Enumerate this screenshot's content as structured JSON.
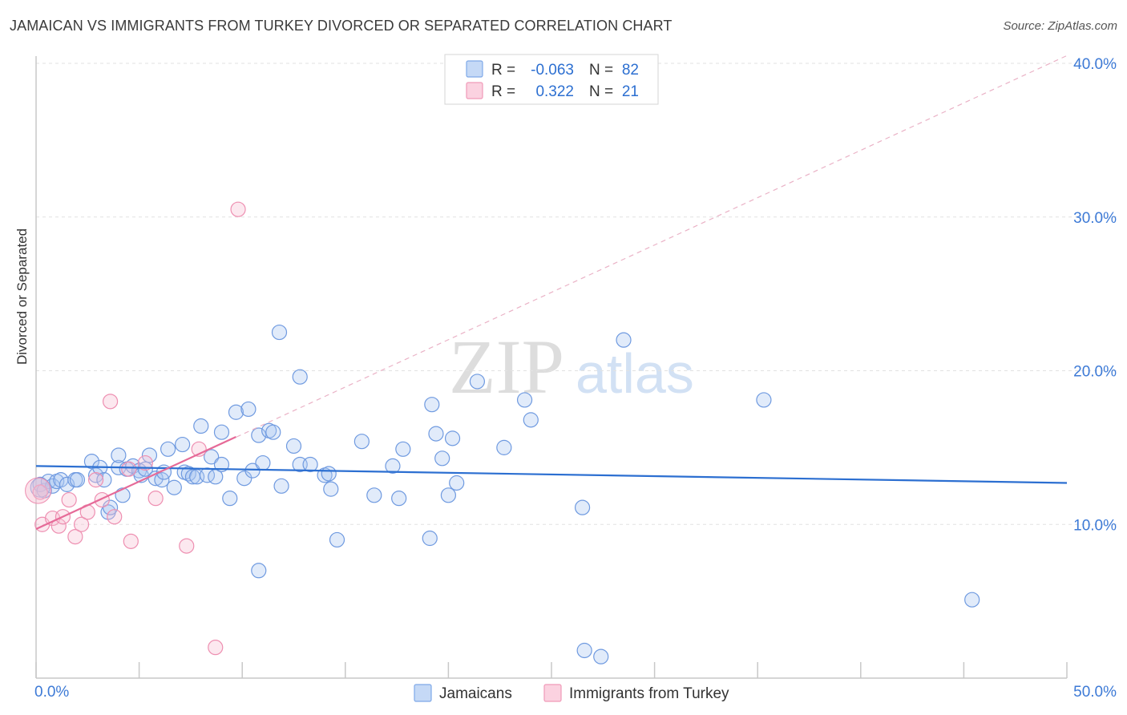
{
  "header": {
    "title": "JAMAICAN VS IMMIGRANTS FROM TURKEY DIVORCED OR SEPARATED CORRELATION CHART",
    "source": "Source: ZipAtlas.com"
  },
  "watermark": {
    "zip": "ZIP",
    "atlas": "atlas"
  },
  "legend_top": {
    "rows": [
      {
        "r_label": "R =",
        "r_value": "-0.063",
        "n_label": "N =",
        "n_value": "82",
        "color": "#7fa9e8"
      },
      {
        "r_label": "R =",
        "r_value": "0.322",
        "n_label": "N =",
        "n_value": "21",
        "color": "#f09ab8"
      }
    ]
  },
  "legend_bottom": {
    "items": [
      {
        "label": "Jamaicans",
        "color": "#7fa9e8"
      },
      {
        "label": "Immigrants from Turkey",
        "color": "#f09ab8"
      }
    ]
  },
  "chart_data": {
    "type": "scatter",
    "title": "JAMAICAN VS IMMIGRANTS FROM TURKEY DIVORCED OR SEPARATED CORRELATION CHART",
    "xlabel": "",
    "ylabel": "Divorced or Separated",
    "xlim": [
      0,
      50
    ],
    "ylim": [
      0,
      40
    ],
    "x_tick_labels": [
      "0.0%",
      "50.0%"
    ],
    "y_tick_values": [
      10,
      20,
      30,
      40
    ],
    "y_tick_labels": [
      "10.0%",
      "20.0%",
      "30.0%",
      "40.0%"
    ],
    "grid": true,
    "series": [
      {
        "name": "Jamaicans",
        "color": "#7fa9e8",
        "trend_color": "#2c6fd1",
        "trend": {
          "x": [
            0,
            50
          ],
          "y": [
            13.8,
            12.7
          ]
        },
        "points": [
          [
            0.2,
            12.6
          ],
          [
            0.4,
            12.2
          ],
          [
            0.6,
            12.8
          ],
          [
            0.8,
            12.5
          ],
          [
            1.0,
            12.8
          ],
          [
            1.2,
            12.9
          ],
          [
            1.5,
            12.6
          ],
          [
            1.9,
            12.9
          ],
          [
            2.0,
            12.9
          ],
          [
            2.7,
            14.1
          ],
          [
            2.9,
            13.2
          ],
          [
            3.1,
            13.7
          ],
          [
            3.5,
            10.8
          ],
          [
            3.6,
            11.1
          ],
          [
            4.0,
            13.7
          ],
          [
            4.0,
            14.5
          ],
          [
            4.2,
            11.9
          ],
          [
            4.4,
            13.6
          ],
          [
            4.7,
            13.8
          ],
          [
            5.0,
            13.5
          ],
          [
            5.1,
            13.2
          ],
          [
            5.3,
            13.6
          ],
          [
            5.5,
            14.5
          ],
          [
            5.8,
            13.0
          ],
          [
            6.1,
            12.9
          ],
          [
            6.2,
            13.4
          ],
          [
            6.4,
            14.9
          ],
          [
            6.7,
            12.4
          ],
          [
            7.1,
            15.2
          ],
          [
            7.2,
            13.4
          ],
          [
            7.4,
            13.3
          ],
          [
            7.6,
            13.1
          ],
          [
            7.8,
            13.1
          ],
          [
            8.0,
            16.4
          ],
          [
            8.3,
            13.2
          ],
          [
            8.5,
            14.4
          ],
          [
            8.7,
            13.1
          ],
          [
            9.0,
            13.9
          ],
          [
            9.0,
            16.0
          ],
          [
            9.4,
            11.7
          ],
          [
            9.7,
            17.3
          ],
          [
            10.1,
            13.0
          ],
          [
            10.3,
            17.5
          ],
          [
            10.5,
            13.5
          ],
          [
            10.8,
            15.8
          ],
          [
            11.0,
            14.0
          ],
          [
            11.3,
            16.1
          ],
          [
            11.5,
            16.0
          ],
          [
            11.8,
            22.5
          ],
          [
            11.9,
            12.5
          ],
          [
            12.5,
            15.1
          ],
          [
            12.8,
            13.9
          ],
          [
            12.8,
            19.6
          ],
          [
            13.3,
            13.9
          ],
          [
            14.0,
            13.2
          ],
          [
            14.2,
            13.3
          ],
          [
            14.3,
            12.3
          ],
          [
            14.6,
            9.0
          ],
          [
            15.8,
            15.4
          ],
          [
            16.4,
            11.9
          ],
          [
            17.3,
            13.8
          ],
          [
            17.6,
            11.7
          ],
          [
            17.8,
            14.9
          ],
          [
            19.1,
            9.1
          ],
          [
            19.2,
            17.8
          ],
          [
            19.4,
            15.9
          ],
          [
            19.7,
            14.3
          ],
          [
            20.0,
            11.9
          ],
          [
            20.2,
            15.6
          ],
          [
            20.4,
            12.7
          ],
          [
            21.4,
            19.3
          ],
          [
            22.7,
            15.0
          ],
          [
            23.7,
            18.1
          ],
          [
            24.0,
            16.8
          ],
          [
            26.5,
            11.1
          ],
          [
            26.6,
            1.8
          ],
          [
            27.4,
            1.4
          ],
          [
            28.5,
            22.0
          ],
          [
            35.3,
            18.1
          ],
          [
            45.4,
            5.1
          ],
          [
            10.8,
            7.0
          ],
          [
            3.3,
            12.9
          ]
        ]
      },
      {
        "name": "Immigrants from Turkey",
        "color": "#f09ab8",
        "trend_color": "#e66a98",
        "trend": {
          "x": [
            0,
            9.7
          ],
          "y": [
            9.7,
            15.7
          ]
        },
        "trend_extended": {
          "x": [
            0,
            50
          ],
          "y": [
            9.7,
            40.5
          ]
        },
        "points": [
          [
            0.2,
            12.1
          ],
          [
            0.3,
            10.0
          ],
          [
            0.8,
            10.4
          ],
          [
            1.1,
            9.9
          ],
          [
            1.3,
            10.5
          ],
          [
            1.6,
            11.6
          ],
          [
            1.9,
            9.2
          ],
          [
            2.2,
            10.0
          ],
          [
            2.5,
            10.8
          ],
          [
            2.9,
            12.9
          ],
          [
            3.2,
            11.6
          ],
          [
            3.6,
            18.0
          ],
          [
            3.8,
            10.5
          ],
          [
            4.5,
            13.6
          ],
          [
            4.6,
            8.9
          ],
          [
            5.3,
            14.0
          ],
          [
            5.8,
            11.7
          ],
          [
            7.3,
            8.6
          ],
          [
            7.9,
            14.9
          ],
          [
            8.7,
            2.0
          ],
          [
            9.8,
            30.5
          ]
        ]
      }
    ]
  }
}
